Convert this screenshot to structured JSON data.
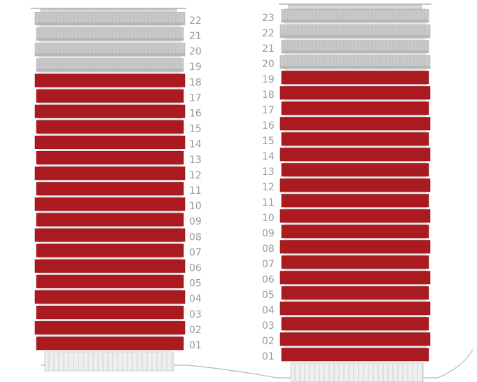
{
  "colors": {
    "highlight": "#ab1a1f",
    "highlight_edge": "#8f1418",
    "plain_floor": "#c9c9cb",
    "plain_edge": "#a9a9ab",
    "label": "#9a9a9a",
    "ground": "#b8b8bb"
  },
  "towers": [
    {
      "id": "left",
      "floors": [
        "01",
        "02",
        "03",
        "04",
        "05",
        "06",
        "07",
        "08",
        "09",
        "10",
        "11",
        "12",
        "13",
        "14",
        "15",
        "16",
        "17",
        "18",
        "19",
        "20",
        "21",
        "22"
      ],
      "highlighted_floors": [
        "01",
        "02",
        "03",
        "04",
        "05",
        "06",
        "07",
        "08",
        "09",
        "10",
        "11",
        "12",
        "13",
        "14",
        "15",
        "16",
        "17",
        "18"
      ]
    },
    {
      "id": "right",
      "floors": [
        "01",
        "02",
        "03",
        "04",
        "05",
        "06",
        "07",
        "08",
        "09",
        "10",
        "11",
        "12",
        "13",
        "14",
        "15",
        "16",
        "17",
        "18",
        "19",
        "20",
        "21",
        "22",
        "23"
      ],
      "highlighted_floors": [
        "01",
        "02",
        "03",
        "04",
        "05",
        "06",
        "07",
        "08",
        "09",
        "10",
        "11",
        "12",
        "13",
        "14",
        "15",
        "16",
        "17",
        "18",
        "19"
      ]
    }
  ]
}
